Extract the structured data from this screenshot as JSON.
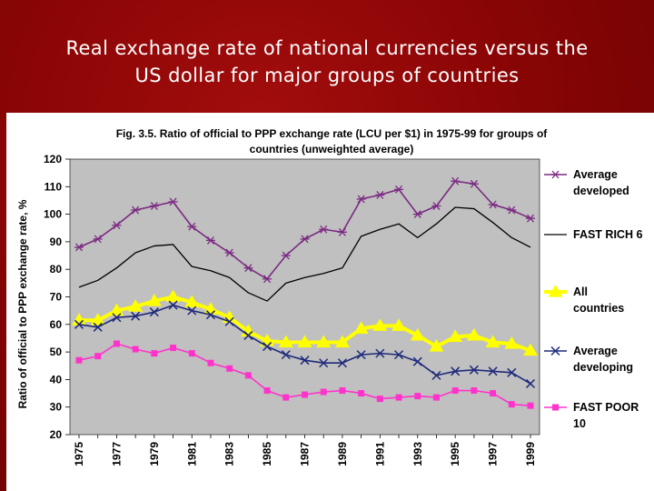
{
  "slide": {
    "title_line1": "Real exchange rate of national currencies versus the",
    "title_line2": "US dollar for major groups of countries"
  },
  "chart_data": {
    "type": "line",
    "title_line1": "Fig. 3.5. Ratio of official to PPP exchange rate (LCU per $1) in 1975-99 for groups of",
    "title_line2": "countries (unweighted average)",
    "ylabel": "Ratio of official to PPP exchange rate, %",
    "xlabel": "",
    "ylim": [
      20,
      120
    ],
    "yticks": [
      20,
      30,
      40,
      50,
      60,
      70,
      80,
      90,
      100,
      110,
      120
    ],
    "x": [
      1975,
      1976,
      1977,
      1978,
      1979,
      1980,
      1981,
      1982,
      1983,
      1984,
      1985,
      1986,
      1987,
      1988,
      1989,
      1990,
      1991,
      1992,
      1993,
      1994,
      1995,
      1996,
      1997,
      1998,
      1999
    ],
    "xtick_labels": [
      "1975",
      "1977",
      "1979",
      "1981",
      "1983",
      "1985",
      "1987",
      "1989",
      "1991",
      "1993",
      "1995",
      "1997",
      "1999"
    ],
    "grid": false,
    "plot_background": "#c0c0c0",
    "legend_position": "right",
    "series": [
      {
        "name": "Average developed",
        "legend_lines": [
          "Average",
          "developed"
        ],
        "color": "#7b2b82",
        "marker": "asterisk",
        "values": [
          88,
          91,
          96,
          101.5,
          103,
          104.5,
          95.5,
          90.5,
          86,
          80.5,
          76.5,
          85,
          91,
          94.5,
          93.5,
          105.5,
          107,
          109,
          100,
          103,
          112,
          111,
          103.5,
          101.5,
          98.5
        ]
      },
      {
        "name": "FAST RICH 6",
        "legend_lines": [
          "FAST RICH 6"
        ],
        "color": "#000000",
        "marker": "none",
        "values": [
          73.5,
          76,
          80.5,
          86,
          88.5,
          89,
          81,
          79.5,
          77,
          71.5,
          68.5,
          75,
          77,
          78.5,
          80.5,
          92,
          94.5,
          96.5,
          91.5,
          96.5,
          102.5,
          102,
          97,
          91.5,
          88
        ]
      },
      {
        "name": "All countries",
        "legend_lines": [
          "All",
          "countries"
        ],
        "color": "#ffff00",
        "marker": "triangle",
        "values": [
          61.5,
          61.5,
          65,
          66.5,
          68.5,
          70,
          68,
          65.5,
          62.5,
          57.5,
          54,
          53.5,
          53.5,
          53.5,
          53.5,
          58.5,
          59.5,
          59.5,
          56,
          52,
          55.5,
          56,
          53.5,
          53,
          50.5
        ]
      },
      {
        "name": "Average developing",
        "legend_lines": [
          "Average",
          "developing"
        ],
        "color": "#1f2a7a",
        "marker": "x",
        "values": [
          60,
          59,
          62.5,
          63,
          64.5,
          67,
          65,
          63.5,
          61,
          56,
          52,
          49,
          47,
          46,
          46,
          49,
          49.5,
          49,
          46.5,
          41.5,
          43,
          43.5,
          43,
          42.5,
          38.5
        ]
      },
      {
        "name": "FAST POOR 10",
        "legend_lines": [
          "FAST POOR",
          "10"
        ],
        "color": "#ff33cc",
        "marker": "square",
        "values": [
          47,
          48.5,
          53,
          51,
          49.5,
          51.5,
          49.5,
          46,
          44,
          41.5,
          36,
          33.5,
          34.5,
          35.5,
          36,
          35,
          33,
          33.5,
          34,
          33.5,
          36,
          36,
          35,
          31,
          30.5
        ]
      }
    ]
  }
}
